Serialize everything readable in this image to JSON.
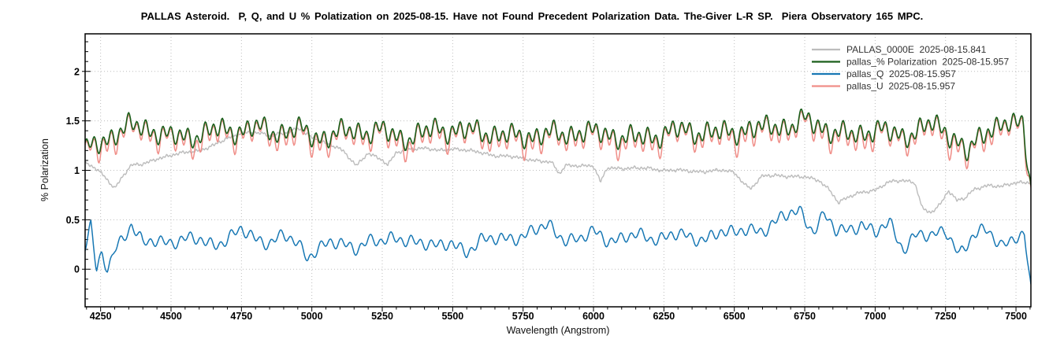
{
  "chart_data": {
    "type": "line",
    "title": "PALLAS Asteroid.  P, Q, and U % Polatization on 2025-08-15. Have not Found Precedent Polarization Data. The-Giver L-R SP.  Piera Observatory 165 MPC.",
    "xlabel": "Wavelength (Angstrom)",
    "ylabel": "% Polarization",
    "xlim": [
      4195,
      7553
    ],
    "ylim": [
      -0.38,
      2.38
    ],
    "xticks": [
      4250,
      4500,
      4750,
      5000,
      5250,
      5500,
      5750,
      6000,
      6250,
      6500,
      6750,
      7000,
      7250,
      7500
    ],
    "yticks": [
      0,
      0.5,
      1,
      1.5,
      2
    ],
    "x_minor_step": 50,
    "y_minor_step": 0.1,
    "grid": "dotted major gridlines both axes",
    "legend_position": "upper right, no frame",
    "frame_color": "#000000",
    "grid_color": "#bdbdbd",
    "draw_order": [
      "PALLAS_0000E",
      "pallas_U",
      "pallas_P",
      "pallas_Q"
    ],
    "series": [
      {
        "id": "PALLAS_0000E",
        "label": "PALLAS_0000E  2025-08-15.841",
        "color": "#bcbcbc",
        "width": 1.4,
        "noise_amp": 0.02,
        "seed": 7.9,
        "freq_scale": 2.6,
        "anchors": {
          "x": [
            4195,
            4230,
            4260,
            4300,
            4330,
            4360,
            4400,
            4450,
            4500,
            4550,
            4600,
            4650,
            4700,
            4750,
            4800,
            4850,
            4900,
            4950,
            5000,
            5050,
            5100,
            5140,
            5160,
            5200,
            5250,
            5270,
            5300,
            5350,
            5400,
            5450,
            5500,
            5550,
            5600,
            5650,
            5700,
            5750,
            5800,
            5850,
            5880,
            5900,
            5950,
            6000,
            6025,
            6050,
            6100,
            6150,
            6200,
            6250,
            6300,
            6350,
            6400,
            6450,
            6500,
            6540,
            6560,
            6600,
            6650,
            6700,
            6750,
            6800,
            6840,
            6870,
            6900,
            6950,
            7000,
            7050,
            7100,
            7140,
            7170,
            7200,
            7230,
            7260,
            7290,
            7320,
            7350,
            7400,
            7450,
            7500,
            7553
          ],
          "y": [
            1.08,
            1.02,
            0.95,
            0.82,
            0.95,
            1.05,
            1.06,
            1.12,
            1.15,
            1.18,
            1.2,
            1.25,
            1.32,
            1.38,
            1.38,
            1.35,
            1.38,
            1.42,
            1.33,
            1.28,
            1.22,
            1.1,
            1.05,
            1.18,
            1.1,
            1.05,
            1.18,
            1.22,
            1.22,
            1.2,
            1.22,
            1.2,
            1.18,
            1.15,
            1.14,
            1.12,
            1.1,
            1.08,
            0.96,
            1.05,
            1.05,
            1.04,
            0.88,
            1.03,
            1.02,
            1.02,
            1.02,
            1.0,
            1.0,
            0.99,
            0.99,
            1.0,
            0.98,
            0.85,
            0.82,
            0.94,
            0.95,
            0.94,
            0.93,
            0.9,
            0.8,
            0.67,
            0.72,
            0.78,
            0.8,
            0.88,
            0.9,
            0.88,
            0.6,
            0.57,
            0.65,
            0.8,
            0.7,
            0.72,
            0.8,
            0.85,
            0.84,
            0.87,
            0.88
          ]
        }
      },
      {
        "id": "pallas_P",
        "label": "pallas_% Polarization  2025-08-15.957",
        "color": "#1a5e1a",
        "width": 1.6,
        "noise_amp": 0.135,
        "seed": 1.7,
        "freq_scale": 1.0,
        "anchors": {
          "x": [
            4195,
            4250,
            4300,
            4350,
            4400,
            4450,
            4500,
            4550,
            4600,
            4650,
            4700,
            4750,
            4800,
            4850,
            4900,
            4950,
            5000,
            5050,
            5100,
            5150,
            5200,
            5250,
            5300,
            5350,
            5400,
            5450,
            5500,
            5550,
            5600,
            5650,
            5700,
            5750,
            5800,
            5850,
            5900,
            5950,
            6000,
            6050,
            6100,
            6150,
            6200,
            6250,
            6300,
            6350,
            6400,
            6450,
            6500,
            6550,
            6600,
            6650,
            6700,
            6750,
            6800,
            6850,
            6900,
            6950,
            7000,
            7050,
            7100,
            7150,
            7200,
            7250,
            7300,
            7330,
            7360,
            7400,
            7450,
            7500,
            7525,
            7553
          ],
          "y": [
            1.22,
            1.3,
            1.38,
            1.42,
            1.4,
            1.38,
            1.33,
            1.36,
            1.4,
            1.42,
            1.4,
            1.38,
            1.4,
            1.38,
            1.4,
            1.44,
            1.38,
            1.35,
            1.36,
            1.38,
            1.36,
            1.38,
            1.36,
            1.36,
            1.4,
            1.44,
            1.38,
            1.36,
            1.38,
            1.36,
            1.36,
            1.38,
            1.38,
            1.36,
            1.34,
            1.36,
            1.35,
            1.38,
            1.36,
            1.35,
            1.36,
            1.36,
            1.38,
            1.36,
            1.38,
            1.38,
            1.42,
            1.45,
            1.42,
            1.45,
            1.4,
            1.48,
            1.46,
            1.4,
            1.38,
            1.4,
            1.42,
            1.35,
            1.32,
            1.38,
            1.46,
            1.44,
            1.3,
            1.18,
            1.3,
            1.42,
            1.45,
            1.4,
            1.48,
            0.8
          ]
        }
      },
      {
        "id": "pallas_Q",
        "label": "pallas_Q  2025-08-15.957",
        "color": "#1878b4",
        "width": 1.5,
        "noise_amp": 0.085,
        "seed": 4.2,
        "freq_scale": 0.85,
        "anchors": {
          "x": [
            4195,
            4215,
            4235,
            4255,
            4275,
            4300,
            4330,
            4360,
            4400,
            4450,
            4500,
            4550,
            4600,
            4650,
            4700,
            4750,
            4800,
            4850,
            4900,
            4950,
            4985,
            5020,
            5060,
            5100,
            5150,
            5200,
            5250,
            5300,
            5350,
            5400,
            5450,
            5500,
            5550,
            5600,
            5650,
            5700,
            5750,
            5800,
            5840,
            5900,
            5950,
            6000,
            6050,
            6100,
            6150,
            6200,
            6250,
            6300,
            6350,
            6400,
            6450,
            6500,
            6550,
            6600,
            6650,
            6700,
            6730,
            6780,
            6820,
            6860,
            6900,
            6950,
            7000,
            7050,
            7100,
            7150,
            7200,
            7250,
            7300,
            7350,
            7400,
            7450,
            7500,
            7530,
            7553
          ],
          "y": [
            0.25,
            0.45,
            -0.03,
            0.15,
            0.02,
            0.22,
            0.3,
            0.42,
            0.22,
            0.3,
            0.28,
            0.3,
            0.32,
            0.28,
            0.3,
            0.38,
            0.3,
            0.26,
            0.32,
            0.25,
            0.14,
            0.24,
            0.28,
            0.26,
            0.22,
            0.3,
            0.25,
            0.28,
            0.3,
            0.26,
            0.22,
            0.3,
            0.2,
            0.28,
            0.3,
            0.32,
            0.3,
            0.38,
            0.45,
            0.32,
            0.3,
            0.4,
            0.32,
            0.3,
            0.32,
            0.3,
            0.32,
            0.35,
            0.3,
            0.35,
            0.4,
            0.35,
            0.42,
            0.38,
            0.45,
            0.55,
            0.6,
            0.4,
            0.55,
            0.4,
            0.42,
            0.48,
            0.35,
            0.45,
            0.2,
            0.35,
            0.3,
            0.42,
            0.18,
            0.35,
            0.4,
            0.25,
            0.32,
            0.3,
            -0.25
          ]
        }
      },
      {
        "id": "pallas_U",
        "label": "pallas_U  2025-08-15.957",
        "color": "#f08e88",
        "width": 1.5,
        "follows": "pallas_P",
        "offset": -0.022,
        "trough_extra": 0.08
      }
    ]
  }
}
